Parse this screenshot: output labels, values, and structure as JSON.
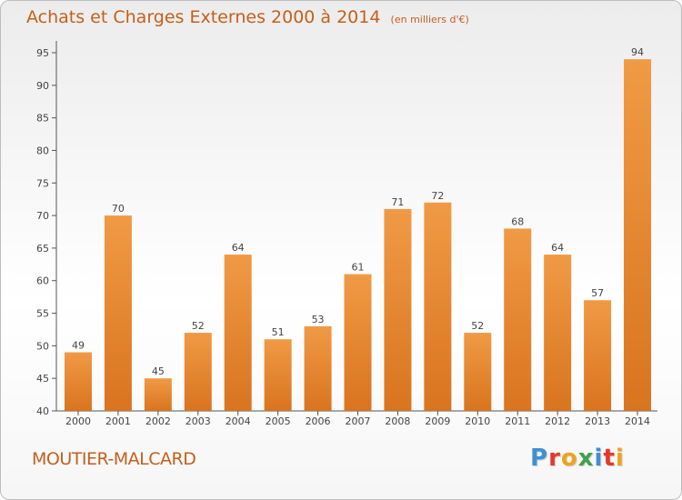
{
  "chart_data": {
    "type": "bar",
    "title": "Achats et Charges Externes 2000 à 2014",
    "subtitle": "(en milliers d'€)",
    "categories": [
      "2000",
      "2001",
      "2002",
      "2003",
      "2004",
      "2005",
      "2006",
      "2007",
      "2008",
      "2009",
      "2010",
      "2011",
      "2012",
      "2013",
      "2014"
    ],
    "values": [
      49,
      70,
      45,
      52,
      64,
      51,
      53,
      61,
      71,
      72,
      52,
      68,
      64,
      57,
      94
    ],
    "ylim": [
      40,
      95
    ],
    "yticks": [
      "40",
      "45",
      "50",
      "55",
      "60",
      "65",
      "70",
      "75",
      "80",
      "85",
      "90",
      "95"
    ],
    "grid": false,
    "bar_color": "#f09a45",
    "bar_color_dark": "#d9741f"
  },
  "footer": {
    "commune": "MOUTIER-MALCARD",
    "brand": "Proxiti",
    "brand_colors": [
      "#3f8fd4",
      "#e6372b",
      "#f0a21e",
      "#3fa24b",
      "#3f8fd4",
      "#e6372b",
      "#f0a21e"
    ]
  }
}
